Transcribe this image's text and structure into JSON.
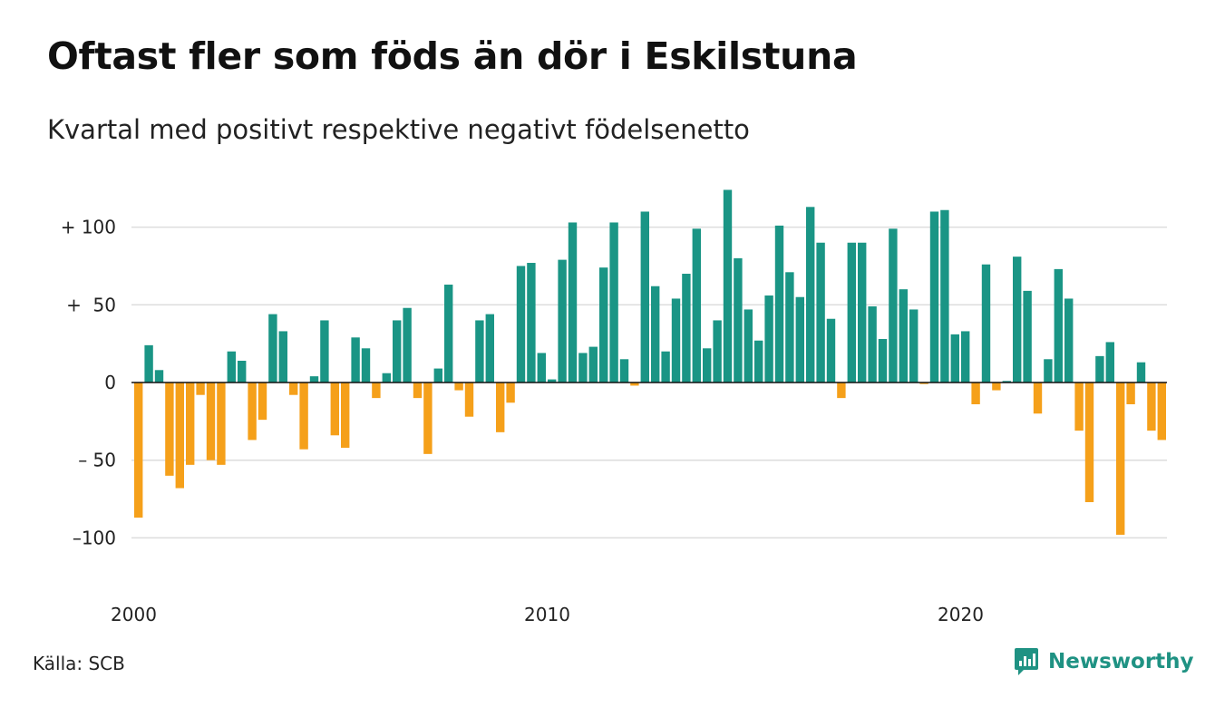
{
  "title": "Oftast fler som föds än dör i Eskilstuna",
  "subtitle": "Kvartal med positivt respektive negativt födelsenetto",
  "source": "Källa: SCB",
  "brand": {
    "name": "Newsworthy",
    "icon": "newsworthy-logo-icon"
  },
  "colors": {
    "positive": "#1a9585",
    "negative": "#f5a01a",
    "grid": "#dddddd",
    "zero_line": "#111111",
    "brand": "#1f9283"
  },
  "chart_data": {
    "type": "bar",
    "title": "Oftast fler som föds än dör i Eskilstuna",
    "subtitle": "Kvartal med positivt respektive negativt födelsenetto",
    "xlabel": "",
    "ylabel": "",
    "ylim": [
      -130,
      130
    ],
    "grid": true,
    "legend": "none",
    "yticks": [
      {
        "value": 100,
        "label": "+ 100"
      },
      {
        "value": 50,
        "label": "+  50"
      },
      {
        "value": 0,
        "label": "0"
      },
      {
        "value": -50,
        "label": "– 50"
      },
      {
        "value": -100,
        "label": "–100"
      }
    ],
    "xticks": [
      {
        "value": 2000,
        "label": "2000"
      },
      {
        "value": 2010,
        "label": "2010"
      },
      {
        "value": 2020,
        "label": "2020"
      }
    ],
    "x_start": 2000,
    "period": "quarter",
    "values": [
      -87,
      24,
      8,
      -60,
      -68,
      -53,
      -8,
      -50,
      -53,
      20,
      14,
      -37,
      -24,
      44,
      33,
      -8,
      -43,
      4,
      40,
      -34,
      -42,
      29,
      22,
      -10,
      6,
      40,
      48,
      -10,
      -46,
      9,
      63,
      -5,
      -22,
      40,
      44,
      -32,
      -13,
      75,
      77,
      19,
      2,
      79,
      103,
      19,
      23,
      74,
      103,
      15,
      -2,
      110,
      62,
      20,
      54,
      70,
      99,
      22,
      40,
      124,
      80,
      47,
      27,
      56,
      101,
      71,
      55,
      113,
      90,
      41,
      -10,
      90,
      90,
      49,
      28,
      99,
      60,
      47,
      -1,
      110,
      111,
      31,
      33,
      -14,
      76,
      -5,
      1,
      81,
      59,
      -20,
      15,
      73,
      54,
      -31,
      -77,
      17,
      26,
      -98,
      -14,
      13,
      -31,
      -37
    ]
  }
}
